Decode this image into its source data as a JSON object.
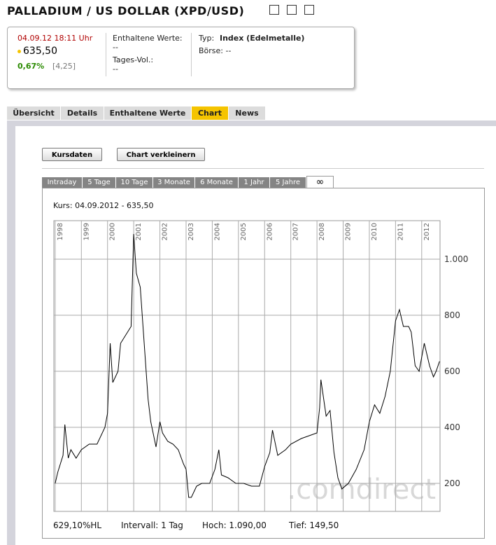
{
  "header": {
    "title": "PALLADIUM / US DOLLAR (XPD/USD)"
  },
  "quote": {
    "datetime": "04.09.12  18:11 Uhr",
    "price": "635,50",
    "change_pct": "0,67%",
    "change_abs": "[4,25]",
    "contained_label": "Enthaltene Werte:",
    "contained_value": "--",
    "volume_label": "Tages-Vol.:",
    "volume_value": "--",
    "type_label": "Typ:",
    "type_value": "Index (Edelmetalle)",
    "exchange": "Börse: --"
  },
  "tabs": [
    "Übersicht",
    "Details",
    "Enthaltene Werte",
    "Chart",
    "News"
  ],
  "buttons": [
    "Kursdaten",
    "Chart verkleinern"
  ],
  "time_tabs": [
    "Intraday",
    "5 Tage",
    "10 Tage",
    "3 Monate",
    "6 Monate",
    "1 Jahr",
    "5 Jahre",
    "∞"
  ],
  "chart_data": {
    "type": "line",
    "subtitle": "Kurs: 04.09.2012 - 635,50",
    "watermark": ".comdirect",
    "color": "#000000",
    "grid": true,
    "x": [
      1998.0,
      1998.1,
      1998.3,
      1998.37,
      1998.5,
      1998.6,
      1998.8,
      1999.0,
      1999.3,
      1999.6,
      1999.9,
      2000.0,
      2000.1,
      2000.2,
      2000.4,
      2000.5,
      2000.7,
      2000.9,
      2001.0,
      2001.1,
      2001.25,
      2001.4,
      2001.55,
      2001.65,
      2001.85,
      2002.0,
      2002.1,
      2002.3,
      2002.5,
      2002.7,
      2002.9,
      2003.0,
      2003.1,
      2003.2,
      2003.4,
      2003.6,
      2003.9,
      2004.1,
      2004.25,
      2004.35,
      2004.6,
      2004.9,
      2005.2,
      2005.5,
      2005.8,
      2006.0,
      2006.2,
      2006.3,
      2006.5,
      2006.8,
      2007.0,
      2007.4,
      2007.7,
      2008.0,
      2008.1,
      2008.15,
      2008.35,
      2008.5,
      2008.65,
      2008.8,
      2008.95,
      2009.2,
      2009.5,
      2009.8,
      2010.0,
      2010.2,
      2010.4,
      2010.6,
      2010.8,
      2011.0,
      2011.15,
      2011.3,
      2011.5,
      2011.6,
      2011.75,
      2011.9,
      2012.1,
      2012.3,
      2012.45,
      2012.55,
      2012.68
    ],
    "values": [
      200,
      240,
      300,
      410,
      290,
      320,
      290,
      320,
      340,
      340,
      400,
      450,
      700,
      560,
      600,
      700,
      730,
      760,
      1090,
      950,
      900,
      700,
      500,
      420,
      330,
      420,
      380,
      350,
      340,
      320,
      270,
      250,
      150,
      150,
      190,
      200,
      200,
      250,
      320,
      230,
      220,
      200,
      200,
      190,
      190,
      260,
      310,
      390,
      300,
      320,
      340,
      360,
      370,
      380,
      470,
      570,
      440,
      460,
      310,
      220,
      180,
      200,
      250,
      320,
      420,
      480,
      450,
      510,
      600,
      780,
      820,
      760,
      760,
      740,
      620,
      600,
      700,
      620,
      580,
      600,
      635.5
    ],
    "xlim": [
      1997.95,
      2012.7
    ],
    "xticks": [
      1998,
      1999,
      2000,
      2001,
      2002,
      2003,
      2004,
      2005,
      2006,
      2007,
      2008,
      2009,
      2010,
      2011,
      2012
    ],
    "ylim": [
      100,
      1137.5
    ],
    "yticks": [
      200,
      400,
      600,
      800,
      {
        "value": 1000,
        "label": "1.000"
      }
    ],
    "stats": [
      "629,10%HL",
      "Intervall: 1 Tag",
      "Hoch: 1.090,00",
      "Tief: 149,50"
    ]
  }
}
